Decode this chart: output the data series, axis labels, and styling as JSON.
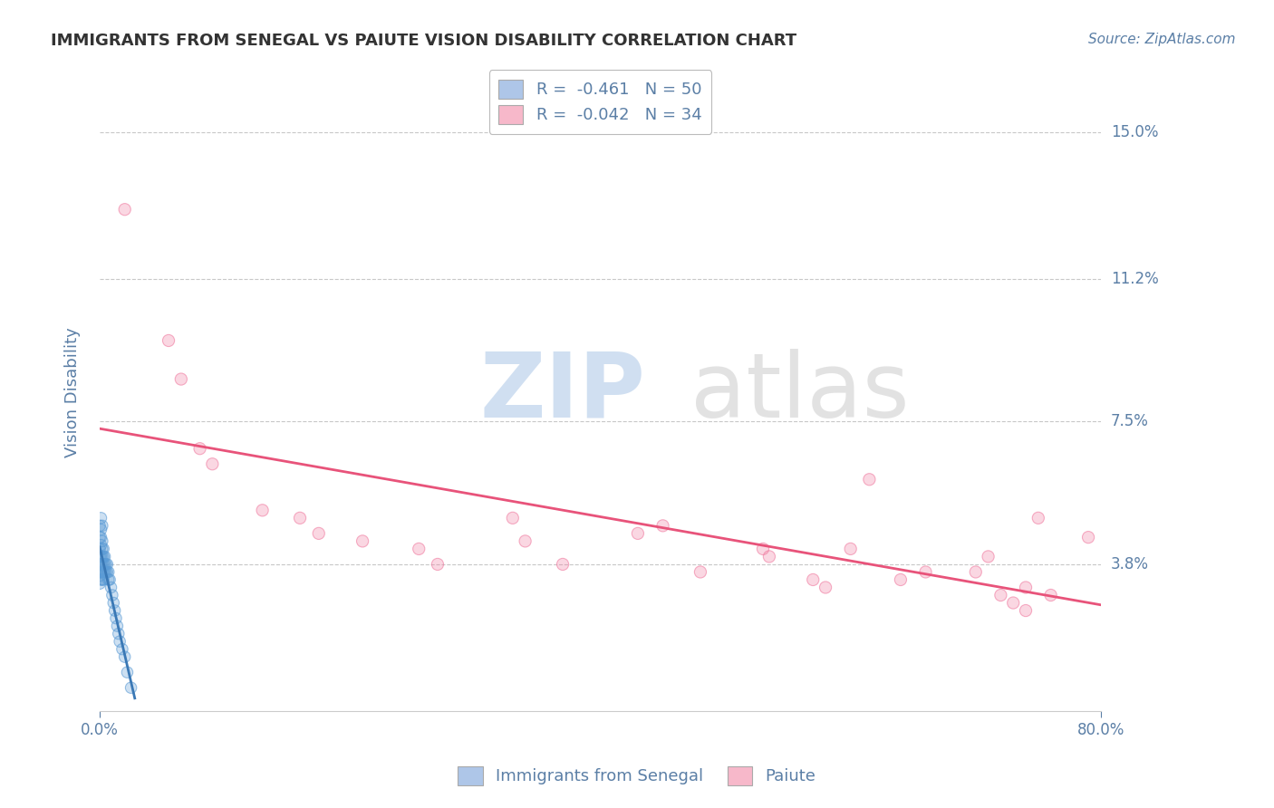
{
  "title": "IMMIGRANTS FROM SENEGAL VS PAIUTE VISION DISABILITY CORRELATION CHART",
  "source": "Source: ZipAtlas.com",
  "xlabel_blue": "Immigrants from Senegal",
  "xlabel_pink": "Paiute",
  "ylabel": "Vision Disability",
  "xlim": [
    0.0,
    0.8
  ],
  "ylim": [
    0.0,
    0.165
  ],
  "yticks": [
    0.038,
    0.075,
    0.112,
    0.15
  ],
  "ytick_labels": [
    "3.8%",
    "7.5%",
    "11.2%",
    "15.0%"
  ],
  "xticks": [
    0.0,
    0.8
  ],
  "xtick_labels": [
    "0.0%",
    "80.0%"
  ],
  "legend_r_blue": "R =  -0.461",
  "legend_n_blue": "N = 50",
  "legend_r_pink": "R =  -0.042",
  "legend_n_pink": "N = 34",
  "blue_patch_color": "#aec6e8",
  "pink_patch_color": "#f7b8ca",
  "blue_scatter_color": "#5b9bd5",
  "pink_scatter_color": "#f07ba0",
  "blue_line_color": "#3a78b5",
  "pink_line_color": "#e8537a",
  "text_color": "#5b7fa6",
  "blue_dots": [
    [
      0.0,
      0.048
    ],
    [
      0.0,
      0.045
    ],
    [
      0.0,
      0.042
    ],
    [
      0.0,
      0.04
    ],
    [
      0.0,
      0.038
    ],
    [
      0.0,
      0.036
    ],
    [
      0.0,
      0.035
    ],
    [
      0.0,
      0.033
    ],
    [
      0.001,
      0.05
    ],
    [
      0.001,
      0.047
    ],
    [
      0.001,
      0.045
    ],
    [
      0.001,
      0.043
    ],
    [
      0.001,
      0.04
    ],
    [
      0.001,
      0.038
    ],
    [
      0.001,
      0.036
    ],
    [
      0.001,
      0.034
    ],
    [
      0.002,
      0.048
    ],
    [
      0.002,
      0.044
    ],
    [
      0.002,
      0.042
    ],
    [
      0.002,
      0.04
    ],
    [
      0.002,
      0.038
    ],
    [
      0.002,
      0.036
    ],
    [
      0.002,
      0.034
    ],
    [
      0.003,
      0.042
    ],
    [
      0.003,
      0.04
    ],
    [
      0.003,
      0.038
    ],
    [
      0.003,
      0.036
    ],
    [
      0.003,
      0.034
    ],
    [
      0.004,
      0.04
    ],
    [
      0.004,
      0.038
    ],
    [
      0.004,
      0.036
    ],
    [
      0.005,
      0.038
    ],
    [
      0.005,
      0.036
    ],
    [
      0.006,
      0.038
    ],
    [
      0.006,
      0.036
    ],
    [
      0.007,
      0.036
    ],
    [
      0.007,
      0.034
    ],
    [
      0.008,
      0.034
    ],
    [
      0.009,
      0.032
    ],
    [
      0.01,
      0.03
    ],
    [
      0.011,
      0.028
    ],
    [
      0.012,
      0.026
    ],
    [
      0.013,
      0.024
    ],
    [
      0.014,
      0.022
    ],
    [
      0.015,
      0.02
    ],
    [
      0.016,
      0.018
    ],
    [
      0.018,
      0.016
    ],
    [
      0.02,
      0.014
    ],
    [
      0.022,
      0.01
    ],
    [
      0.025,
      0.006
    ]
  ],
  "pink_dots": [
    [
      0.02,
      0.13
    ],
    [
      0.055,
      0.096
    ],
    [
      0.065,
      0.086
    ],
    [
      0.08,
      0.068
    ],
    [
      0.09,
      0.064
    ],
    [
      0.13,
      0.052
    ],
    [
      0.16,
      0.05
    ],
    [
      0.175,
      0.046
    ],
    [
      0.21,
      0.044
    ],
    [
      0.255,
      0.042
    ],
    [
      0.27,
      0.038
    ],
    [
      0.33,
      0.05
    ],
    [
      0.34,
      0.044
    ],
    [
      0.37,
      0.038
    ],
    [
      0.43,
      0.046
    ],
    [
      0.45,
      0.048
    ],
    [
      0.48,
      0.036
    ],
    [
      0.53,
      0.042
    ],
    [
      0.535,
      0.04
    ],
    [
      0.57,
      0.034
    ],
    [
      0.58,
      0.032
    ],
    [
      0.6,
      0.042
    ],
    [
      0.615,
      0.06
    ],
    [
      0.64,
      0.034
    ],
    [
      0.66,
      0.036
    ],
    [
      0.7,
      0.036
    ],
    [
      0.71,
      0.04
    ],
    [
      0.72,
      0.03
    ],
    [
      0.73,
      0.028
    ],
    [
      0.74,
      0.032
    ],
    [
      0.74,
      0.026
    ],
    [
      0.75,
      0.05
    ],
    [
      0.76,
      0.03
    ],
    [
      0.79,
      0.045
    ]
  ],
  "watermark_zip_color": "#c5d8ee",
  "watermark_atlas_color": "#d0d0d0",
  "background_color": "#ffffff",
  "grid_color": "#c8c8c8"
}
